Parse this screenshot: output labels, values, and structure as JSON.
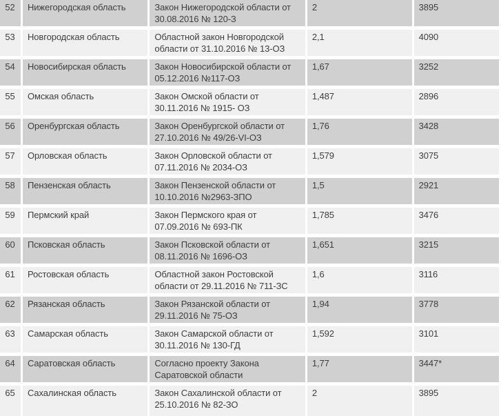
{
  "table": {
    "row_start_number": "52",
    "row_end_number": "65",
    "columns": [
      "num",
      "region",
      "law",
      "coefficient",
      "amount"
    ],
    "rows": [
      {
        "num": "52",
        "region": "Нижегородская область",
        "law": "Закон Нижегородской области от 30.08.2016 № 120-З",
        "coefficient": "2",
        "amount": "3895"
      },
      {
        "num": "53",
        "region": "Новгородская область",
        "law": "Областной закон Новгородской области от 31.10.2016 № 13-ОЗ",
        "coefficient": "2,1",
        "amount": "4090"
      },
      {
        "num": "54",
        "region": "Новосибирская область",
        "law": "Закон Новосибирской области от 05.12.2016 №117-ОЗ",
        "coefficient": "1,67",
        "amount": "3252"
      },
      {
        "num": "55",
        "region": "Омская область",
        "law": "Закон Омской области от 30.11.2016 № 1915- ОЗ",
        "coefficient": "1,487",
        "amount": "2896"
      },
      {
        "num": "56",
        "region": "Оренбургская область",
        "law": "Закон Оренбургской области от 27.10.2016 № 49/26-VI-ОЗ",
        "coefficient": "1,76",
        "amount": "3428"
      },
      {
        "num": "57",
        "region": "Орловская область",
        "law": "Закон Орловской области от 07.11.2016 № 2034-ОЗ",
        "coefficient": "1,579",
        "amount": "3075"
      },
      {
        "num": "58",
        "region": "Пензенская область",
        "law": "Закон Пензенской области от 10.10.2016 №2963-ЗПО",
        "coefficient": "1,5",
        "amount": "2921"
      },
      {
        "num": "59",
        "region": "Пермский край",
        "law": "Закон Пермского края от 07.09.2016 № 693-ПК",
        "coefficient": "1,785",
        "amount": "3476"
      },
      {
        "num": "60",
        "region": "Псковская область",
        "law": "Закон Псковской области от 08.11.2016 № 1696-ОЗ",
        "coefficient": "1,651",
        "amount": "3215"
      },
      {
        "num": "61",
        "region": "Ростовская область",
        "law": "Областной закон Ростовской области от 29.11.2016 № 711-ЗС",
        "coefficient": "1,6",
        "amount": "3116"
      },
      {
        "num": "62",
        "region": "Рязанская область",
        "law": "Закон Рязанской области от 29.11.2016 № 75-ОЗ",
        "coefficient": "1,94",
        "amount": "3778"
      },
      {
        "num": "63",
        "region": "Самарская область",
        "law": "Закон Самарской области от 30.11.2016 № 130-ГД",
        "coefficient": "1,592",
        "amount": "3101"
      },
      {
        "num": "64",
        "region": "Саратовская область",
        "law": "Согласно проекту Закона Саратовской области",
        "coefficient": "1,77",
        "amount": "3447*"
      },
      {
        "num": "65",
        "region": "Сахалинская область",
        "law": "Закон Сахалинской области от 25.10.2016 № 82-ЗО",
        "coefficient": "2",
        "amount": "3895"
      }
    ]
  },
  "colors": {
    "row_odd": "#d0d0d0",
    "row_even": "#f0f0f0",
    "border": "#ffffff",
    "text": "#3e3e3e"
  }
}
